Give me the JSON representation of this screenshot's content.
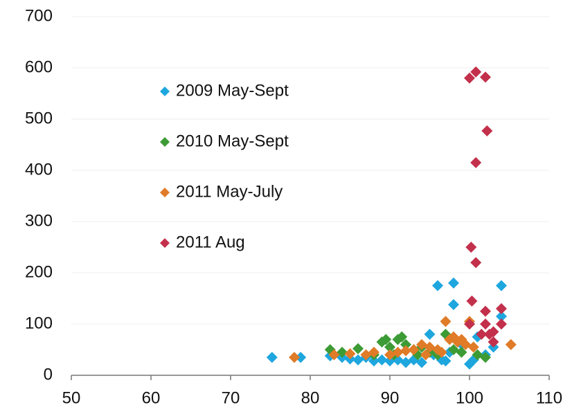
{
  "chart_data": {
    "type": "scatter",
    "xlim": [
      50,
      110
    ],
    "xticks": [
      50,
      60,
      70,
      80,
      90,
      100,
      110
    ],
    "ylim": [
      0,
      700
    ],
    "yticks": [
      0,
      100,
      200,
      300,
      400,
      500,
      600,
      700
    ],
    "grid": true,
    "legend": "upper left",
    "series": [
      {
        "name": "2009 May-Sept",
        "color": "#1ea6de",
        "x": [
          75.2,
          78.8,
          82.5,
          84,
          85,
          86,
          87,
          88,
          89,
          90,
          91,
          92,
          93,
          94,
          95,
          96,
          96.5,
          97,
          98,
          98,
          99,
          100,
          100.5,
          101,
          102,
          103,
          104,
          104,
          97.5,
          95.5
        ],
        "values": [
          35,
          35,
          38,
          35,
          32,
          30,
          35,
          28,
          30,
          28,
          30,
          25,
          30,
          25,
          80,
          175,
          30,
          28,
          180,
          138,
          60,
          22,
          30,
          75,
          40,
          55,
          175,
          115,
          45,
          40
        ]
      },
      {
        "name": "2010 May-Sept",
        "color": "#3d9b35",
        "x": [
          82.5,
          84,
          86,
          88,
          89,
          89.5,
          90,
          91,
          91.5,
          92,
          93,
          94,
          95,
          96,
          97,
          98,
          99,
          101,
          102,
          90.5,
          93.5
        ],
        "values": [
          50,
          45,
          52,
          40,
          65,
          70,
          55,
          70,
          75,
          60,
          50,
          55,
          45,
          40,
          80,
          50,
          45,
          40,
          35,
          40,
          40
        ]
      },
      {
        "name": "2011 May-July",
        "color": "#e07b27",
        "x": [
          78,
          83,
          85,
          87,
          88,
          90,
          91,
          92,
          93,
          94,
          95,
          96,
          97,
          97.5,
          98,
          98.5,
          99,
          99.5,
          100,
          100.5,
          105.2,
          96.5,
          94.5
        ],
        "values": [
          35,
          40,
          42,
          40,
          45,
          40,
          45,
          48,
          50,
          60,
          55,
          50,
          105,
          70,
          75,
          65,
          70,
          60,
          105,
          55,
          60,
          45,
          40
        ]
      },
      {
        "name": "2011 Aug",
        "color": "#c3304b",
        "x": [
          100,
          100.8,
          102,
          102.2,
          100.8,
          100.2,
          100.8,
          100.3,
          100,
          102,
          102,
          104,
          104,
          102.5,
          103,
          103,
          101.5
        ],
        "values": [
          580,
          592,
          582,
          477,
          415,
          250,
          220,
          145,
          100,
          125,
          100,
          130,
          100,
          80,
          65,
          85,
          80
        ]
      }
    ]
  }
}
